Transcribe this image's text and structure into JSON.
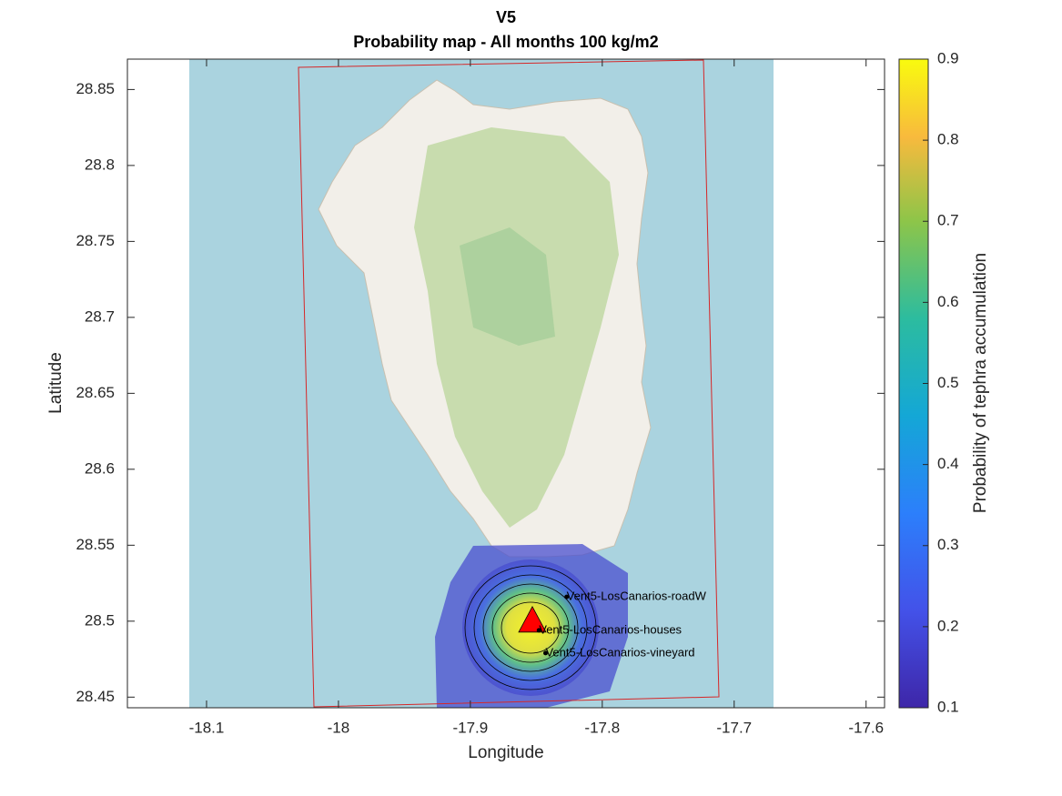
{
  "chart_data": {
    "type": "map",
    "title": "V5",
    "subtitle": "Probability map - All months 100 kg/m2",
    "xlabel": "Longitude",
    "ylabel": "Latitude",
    "xlim": [
      -18.16,
      -17.586
    ],
    "ylim": [
      28.443,
      28.87
    ],
    "xticks": [
      -18.1,
      -18,
      -17.9,
      -17.8,
      -17.7,
      -17.6
    ],
    "yticks": [
      28.45,
      28.5,
      28.55,
      28.6,
      28.65,
      28.7,
      28.75,
      28.8,
      28.85
    ],
    "colorbar": {
      "label": "Probability of tephra accumulation",
      "lim": [
        0.1,
        0.9
      ],
      "ticks": [
        0.1,
        0.2,
        0.3,
        0.4,
        0.5,
        0.6,
        0.7,
        0.8,
        0.9
      ]
    },
    "vent": {
      "x": -17.853,
      "y": 28.5,
      "color": "#ff0000"
    },
    "points": [
      {
        "label": "Vent5-LosCanarios-roadW",
        "x": -17.827,
        "y": 28.516
      },
      {
        "label": "Vent5-LosCanarios-houses",
        "x": -17.848,
        "y": 28.494
      },
      {
        "label": "Vent5-LosCanarios-vineyard",
        "x": -17.843,
        "y": 28.479
      }
    ]
  }
}
